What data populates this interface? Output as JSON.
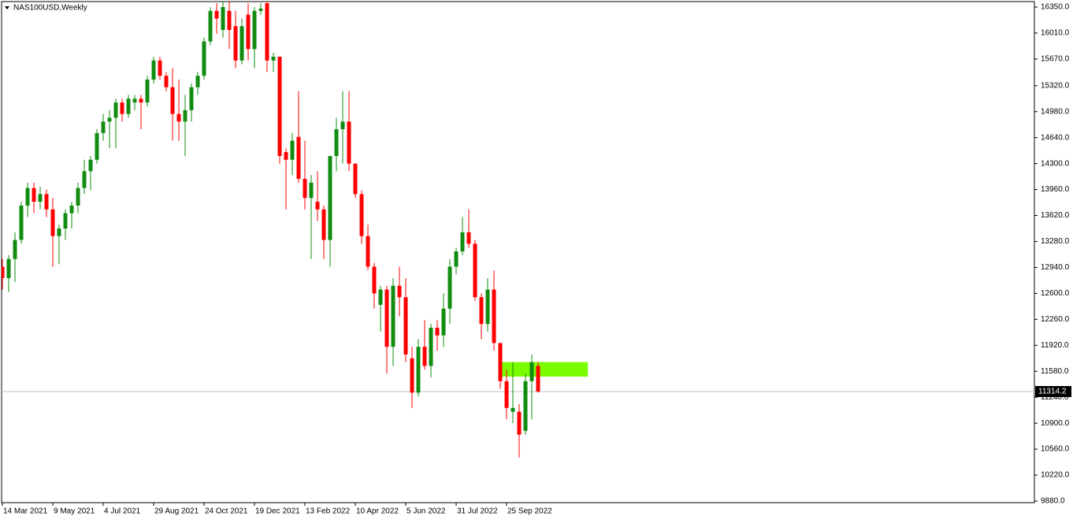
{
  "chart_data": {
    "type": "candlestick",
    "title": "NAS100USD,Weekly",
    "categories": [
      "14 Mar 2021",
      null,
      null,
      null,
      null,
      null,
      null,
      null,
      "9 May 2021",
      null,
      null,
      null,
      null,
      null,
      null,
      null,
      "4 Jul 2021",
      null,
      null,
      null,
      null,
      null,
      null,
      null,
      "29 Aug 2021",
      null,
      null,
      null,
      null,
      null,
      null,
      null,
      "24 Oct 2021",
      null,
      null,
      null,
      null,
      null,
      null,
      null,
      "19 Dec 2021",
      null,
      null,
      null,
      null,
      null,
      null,
      null,
      "13 Feb 2022",
      null,
      null,
      null,
      null,
      null,
      null,
      null,
      "10 Apr 2022",
      null,
      null,
      null,
      null,
      null,
      null,
      null,
      "5 Jun 2022",
      null,
      null,
      null,
      null,
      null,
      null,
      null,
      "31 Jul 2022",
      null,
      null,
      null,
      null,
      null,
      null,
      null,
      "25 Sep 2022",
      null,
      null,
      null,
      null,
      null
    ],
    "open": [
      12950,
      12800,
      13050,
      13300,
      13750,
      13980,
      13800,
      13900,
      13700,
      13350,
      13450,
      13650,
      13750,
      13980,
      14200,
      14350,
      14700,
      14850,
      14900,
      15100,
      14950,
      15100,
      15150,
      15100,
      15400,
      15650,
      15450,
      15300,
      14950,
      14850,
      15000,
      15300,
      15450,
      15900,
      16300,
      16050,
      16300,
      16100,
      15650,
      16250,
      15800,
      16300,
      16400,
      15650,
      15700,
      14450,
      14350,
      14650,
      14100,
      13850,
      13800,
      13700,
      13300,
      14400,
      14750,
      14850,
      14300,
      13900,
      13350,
      12950,
      12450,
      12650,
      11900,
      12700,
      12550,
      11750,
      11300,
      11900,
      11650,
      12150,
      12050,
      12400,
      12950,
      13150,
      13400,
      13250,
      12550,
      12200,
      12650,
      11950,
      11450,
      11050,
      11050,
      10800,
      11450,
      11650
    ],
    "high": [
      13050,
      13100,
      13400,
      13800,
      14050,
      14050,
      14000,
      13960,
      13850,
      13500,
      13700,
      13800,
      14050,
      14350,
      14400,
      14750,
      14950,
      15000,
      15150,
      15150,
      15200,
      15200,
      15200,
      15450,
      15700,
      15700,
      15500,
      15550,
      15400,
      15200,
      15350,
      15500,
      15950,
      16350,
      16400,
      16500,
      16450,
      16300,
      16200,
      16400,
      16350,
      16400,
      16450,
      15750,
      15700,
      14500,
      14700,
      15250,
      14600,
      14150,
      14200,
      13750,
      14400,
      14900,
      15250,
      15250,
      14300,
      13950,
      13500,
      13000,
      12700,
      12700,
      12800,
      12950,
      12800,
      11900,
      12000,
      12250,
      12200,
      12250,
      12600,
      13050,
      13200,
      13600,
      13700,
      13300,
      12600,
      12800,
      12900,
      11950,
      11600,
      11700,
      11150,
      11550,
      11800,
      11700
    ],
    "low": [
      12650,
      12620,
      12750,
      13250,
      13600,
      13650,
      13700,
      13600,
      12950,
      12980,
      13300,
      13450,
      13650,
      13900,
      13950,
      14300,
      14600,
      14500,
      14500,
      14850,
      14900,
      15000,
      14750,
      15050,
      15350,
      15400,
      15250,
      14600,
      14600,
      14400,
      14850,
      15200,
      15400,
      15850,
      16000,
      15950,
      15800,
      15550,
      15600,
      15650,
      15550,
      16250,
      15500,
      15500,
      14300,
      13700,
      14150,
      14050,
      13700,
      13050,
      13550,
      13050,
      12950,
      14200,
      14300,
      14200,
      13850,
      13250,
      12900,
      12400,
      12100,
      11550,
      11650,
      12300,
      11700,
      11100,
      11250,
      11600,
      11500,
      11850,
      11900,
      12200,
      12850,
      13100,
      13200,
      12500,
      12000,
      12100,
      11850,
      11350,
      10950,
      10900,
      10450,
      10750,
      10950,
      11300
    ],
    "close": [
      12800,
      13050,
      13300,
      13750,
      13980,
      13800,
      13900,
      13700,
      13350,
      13450,
      13650,
      13750,
      13980,
      14200,
      14350,
      14700,
      14850,
      14900,
      15100,
      14950,
      15150,
      15150,
      15100,
      15400,
      15650,
      15450,
      15300,
      14950,
      14850,
      15000,
      15300,
      15450,
      15900,
      16300,
      16200,
      16350,
      16050,
      15650,
      16100,
      15800,
      16300,
      16330,
      15650,
      15700,
      14400,
      14350,
      14600,
      14100,
      13850,
      14050,
      13700,
      13300,
      14400,
      14750,
      14850,
      14300,
      13900,
      13350,
      12950,
      12600,
      12650,
      11900,
      12700,
      12550,
      11800,
      11300,
      11900,
      11650,
      12150,
      12050,
      12400,
      12950,
      13150,
      13400,
      13250,
      12550,
      12200,
      12650,
      11950,
      11450,
      11100,
      11100,
      10750,
      11450,
      11700,
      11314.2
    ],
    "up_color": "#118c11",
    "down_color": "#ff0000",
    "current_price": 11314.2,
    "zone": {
      "low": 11510,
      "high": 11700,
      "x0": 79.25,
      "x1": 92.9,
      "color": "#7cfc00"
    },
    "ylim": [
      9859,
      16422
    ],
    "yticks": [
      {
        "value": 16350,
        "label": "16350.0"
      },
      {
        "value": 16010,
        "label": "16010.0"
      },
      {
        "value": 15670,
        "label": "15670.0"
      },
      {
        "value": 15320,
        "label": "15320.0"
      },
      {
        "value": 14980,
        "label": "14980.0"
      },
      {
        "value": 14640,
        "label": "14640.0"
      },
      {
        "value": 14300,
        "label": "14300.0"
      },
      {
        "value": 13960,
        "label": "13960.0"
      },
      {
        "value": 13620,
        "label": "13620.0"
      },
      {
        "value": 13280,
        "label": "13280.0"
      },
      {
        "value": 12940,
        "label": "12940.0"
      },
      {
        "value": 12600,
        "label": "12600.0"
      },
      {
        "value": 12260,
        "label": "12260.0"
      },
      {
        "value": 11920,
        "label": "11920.0"
      },
      {
        "value": 11580,
        "label": "11580.0"
      },
      {
        "value": 11240,
        "label": "11240.0"
      },
      {
        "value": 10900,
        "label": "10900.0"
      },
      {
        "value": 10560,
        "label": "10560.0"
      },
      {
        "value": 10220,
        "label": "10220.0"
      },
      {
        "value": 9880,
        "label": "9880.0"
      }
    ]
  }
}
